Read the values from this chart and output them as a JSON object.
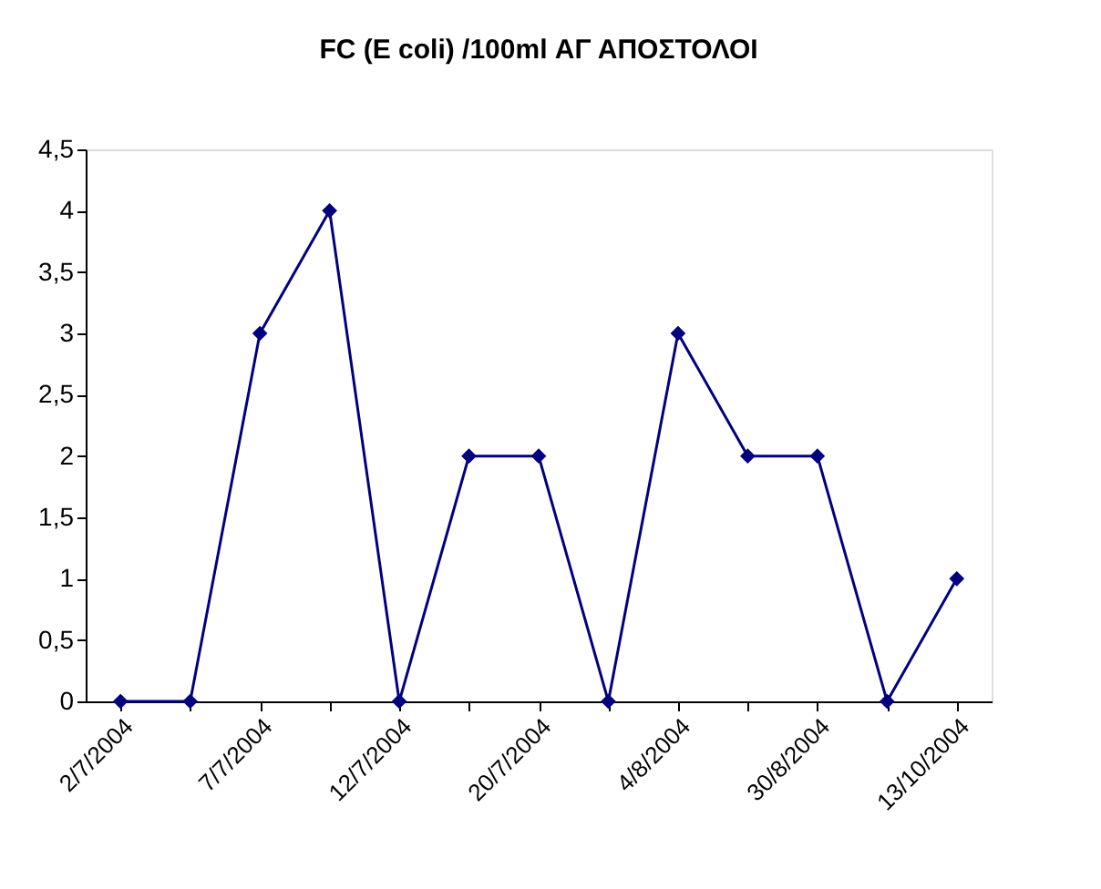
{
  "chart_data": {
    "type": "line",
    "title": "FC (E coli) /100ml ΑΓ ΑΠΟΣΤΟΛΟΙ",
    "categories": [
      "2/7/2004",
      null,
      "7/7/2004",
      null,
      "12/7/2004",
      null,
      "20/7/2004",
      null,
      "4/8/2004",
      null,
      "30/8/2004",
      null,
      "13/10/2004"
    ],
    "series": [
      {
        "color": "#000080",
        "values": [
          0,
          0,
          3,
          4,
          0,
          2,
          2,
          0,
          3,
          2,
          2,
          0,
          1
        ]
      }
    ],
    "ylim": [
      0,
      4.5
    ],
    "yticks": [
      {
        "value": 0,
        "label": "0"
      },
      {
        "value": 0.5,
        "label": "0,5"
      },
      {
        "value": 1,
        "label": "1"
      },
      {
        "value": 1.5,
        "label": "1,5"
      },
      {
        "value": 2,
        "label": "2"
      },
      {
        "value": 2.5,
        "label": "2,5"
      },
      {
        "value": 3,
        "label": "3"
      },
      {
        "value": 3.5,
        "label": "3,5"
      },
      {
        "value": 4,
        "label": "4"
      },
      {
        "value": 4.5,
        "label": "4,5"
      }
    ],
    "grid": false,
    "marker": "diamond",
    "line_style": "solid"
  }
}
